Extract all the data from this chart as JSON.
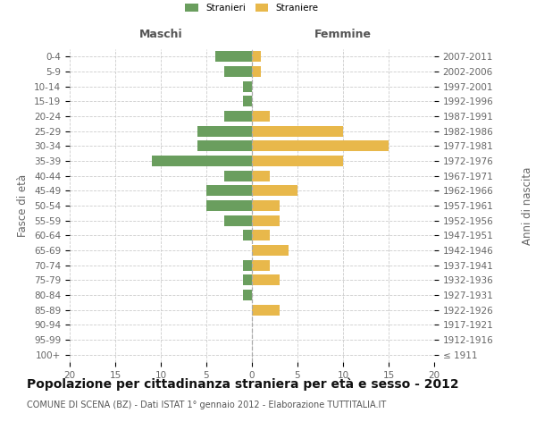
{
  "age_groups": [
    "100+",
    "95-99",
    "90-94",
    "85-89",
    "80-84",
    "75-79",
    "70-74",
    "65-69",
    "60-64",
    "55-59",
    "50-54",
    "45-49",
    "40-44",
    "35-39",
    "30-34",
    "25-29",
    "20-24",
    "15-19",
    "10-14",
    "5-9",
    "0-4"
  ],
  "birth_years": [
    "≤ 1911",
    "1912-1916",
    "1917-1921",
    "1922-1926",
    "1927-1931",
    "1932-1936",
    "1937-1941",
    "1942-1946",
    "1947-1951",
    "1952-1956",
    "1957-1961",
    "1962-1966",
    "1967-1971",
    "1972-1976",
    "1977-1981",
    "1982-1986",
    "1987-1991",
    "1992-1996",
    "1997-2001",
    "2002-2006",
    "2007-2011"
  ],
  "males": [
    0,
    0,
    0,
    0,
    1,
    1,
    1,
    0,
    1,
    3,
    5,
    5,
    3,
    11,
    6,
    6,
    3,
    1,
    1,
    3,
    4
  ],
  "females": [
    0,
    0,
    0,
    3,
    0,
    3,
    2,
    4,
    2,
    3,
    3,
    5,
    2,
    10,
    15,
    10,
    2,
    0,
    0,
    1,
    1
  ],
  "male_color": "#6a9e5e",
  "female_color": "#e8b84b",
  "grid_color": "#cccccc",
  "bar_height": 0.72,
  "xlim": 20,
  "title": "Popolazione per cittadinanza straniera per età e sesso - 2012",
  "subtitle": "COMUNE DI SCENA (BZ) - Dati ISTAT 1° gennaio 2012 - Elaborazione TUTTITALIA.IT",
  "label_maschi": "Maschi",
  "label_femmine": "Femmine",
  "ylabel_left": "Fasce di età",
  "ylabel_right": "Anni di nascita",
  "legend_male": "Stranieri",
  "legend_female": "Straniere",
  "title_fontsize": 10,
  "subtitle_fontsize": 7,
  "tick_fontsize": 7.5,
  "axis_label_fontsize": 8.5,
  "section_label_fontsize": 9
}
